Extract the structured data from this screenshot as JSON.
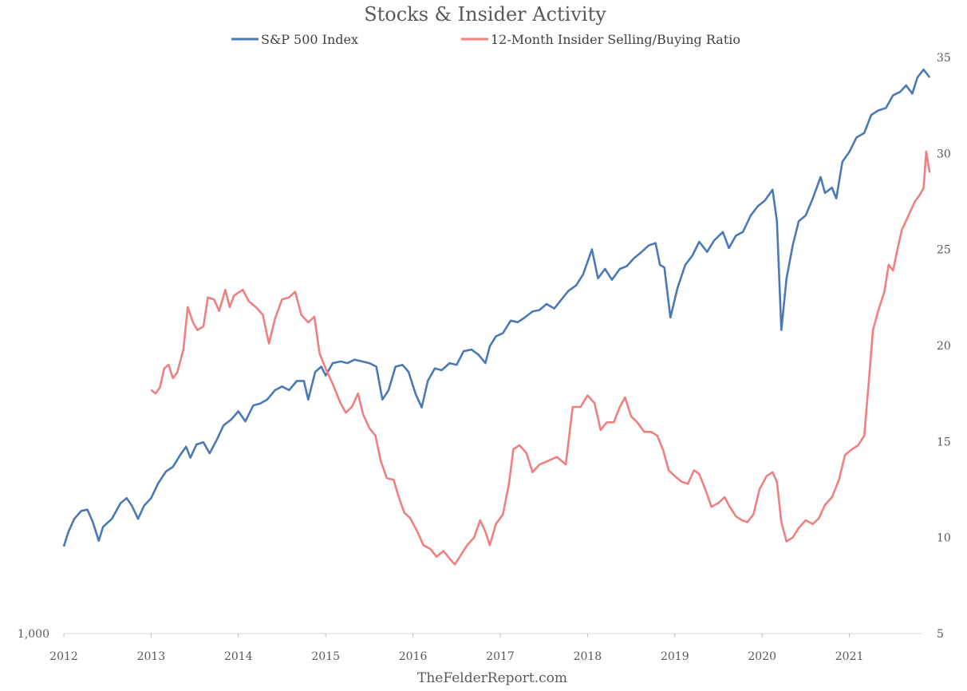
{
  "chart_data": {
    "type": "line",
    "title": "Stocks & Insider Activity",
    "source": "TheFelderReport.com",
    "x_ticks": [
      "2012",
      "2013",
      "2014",
      "2015",
      "2016",
      "2017",
      "2018",
      "2019",
      "2020",
      "2021"
    ],
    "x_range": [
      2012,
      2021.9
    ],
    "left_axis": {
      "scale": "log",
      "ticks": [
        "1,000"
      ],
      "range": [
        1000,
        5000
      ]
    },
    "right_axis": {
      "scale": "linear",
      "ticks": [
        "5",
        "10",
        "15",
        "20",
        "25",
        "30",
        "35"
      ],
      "range": [
        5,
        35
      ]
    },
    "series": [
      {
        "name": "S&P 500 Index",
        "axis": "left",
        "color": "#4a7ab5",
        "points": [
          [
            2012.0,
            1270
          ],
          [
            2012.05,
            1320
          ],
          [
            2012.12,
            1370
          ],
          [
            2012.2,
            1400
          ],
          [
            2012.27,
            1405
          ],
          [
            2012.33,
            1360
          ],
          [
            2012.4,
            1290
          ],
          [
            2012.45,
            1340
          ],
          [
            2012.55,
            1370
          ],
          [
            2012.65,
            1430
          ],
          [
            2012.72,
            1450
          ],
          [
            2012.78,
            1420
          ],
          [
            2012.85,
            1370
          ],
          [
            2012.92,
            1420
          ],
          [
            2013.0,
            1450
          ],
          [
            2013.08,
            1510
          ],
          [
            2013.17,
            1560
          ],
          [
            2013.25,
            1580
          ],
          [
            2013.33,
            1630
          ],
          [
            2013.4,
            1670
          ],
          [
            2013.45,
            1620
          ],
          [
            2013.52,
            1680
          ],
          [
            2013.6,
            1690
          ],
          [
            2013.67,
            1640
          ],
          [
            2013.75,
            1700
          ],
          [
            2013.83,
            1770
          ],
          [
            2013.92,
            1800
          ],
          [
            2014.0,
            1840
          ],
          [
            2014.08,
            1790
          ],
          [
            2014.17,
            1870
          ],
          [
            2014.25,
            1880
          ],
          [
            2014.33,
            1900
          ],
          [
            2014.42,
            1950
          ],
          [
            2014.5,
            1970
          ],
          [
            2014.58,
            1950
          ],
          [
            2014.67,
            2000
          ],
          [
            2014.75,
            2000
          ],
          [
            2014.8,
            1900
          ],
          [
            2014.88,
            2050
          ],
          [
            2014.95,
            2080
          ],
          [
            2015.0,
            2030
          ],
          [
            2015.08,
            2100
          ],
          [
            2015.17,
            2110
          ],
          [
            2015.25,
            2100
          ],
          [
            2015.33,
            2120
          ],
          [
            2015.42,
            2110
          ],
          [
            2015.5,
            2100
          ],
          [
            2015.58,
            2080
          ],
          [
            2015.65,
            1900
          ],
          [
            2015.72,
            1950
          ],
          [
            2015.8,
            2080
          ],
          [
            2015.88,
            2090
          ],
          [
            2015.95,
            2050
          ],
          [
            2016.03,
            1930
          ],
          [
            2016.1,
            1860
          ],
          [
            2016.17,
            2000
          ],
          [
            2016.25,
            2070
          ],
          [
            2016.33,
            2060
          ],
          [
            2016.42,
            2100
          ],
          [
            2016.5,
            2090
          ],
          [
            2016.58,
            2170
          ],
          [
            2016.67,
            2180
          ],
          [
            2016.75,
            2150
          ],
          [
            2016.83,
            2100
          ],
          [
            2016.88,
            2200
          ],
          [
            2016.95,
            2260
          ],
          [
            2017.03,
            2280
          ],
          [
            2017.12,
            2360
          ],
          [
            2017.2,
            2350
          ],
          [
            2017.28,
            2380
          ],
          [
            2017.37,
            2420
          ],
          [
            2017.45,
            2430
          ],
          [
            2017.53,
            2470
          ],
          [
            2017.62,
            2440
          ],
          [
            2017.7,
            2500
          ],
          [
            2017.78,
            2560
          ],
          [
            2017.87,
            2600
          ],
          [
            2017.95,
            2680
          ],
          [
            2018.05,
            2870
          ],
          [
            2018.12,
            2650
          ],
          [
            2018.2,
            2720
          ],
          [
            2018.28,
            2640
          ],
          [
            2018.37,
            2720
          ],
          [
            2018.45,
            2740
          ],
          [
            2018.53,
            2800
          ],
          [
            2018.62,
            2850
          ],
          [
            2018.7,
            2900
          ],
          [
            2018.78,
            2920
          ],
          [
            2018.83,
            2750
          ],
          [
            2018.88,
            2730
          ],
          [
            2018.95,
            2380
          ],
          [
            2019.03,
            2580
          ],
          [
            2019.12,
            2750
          ],
          [
            2019.2,
            2820
          ],
          [
            2019.28,
            2930
          ],
          [
            2019.37,
            2850
          ],
          [
            2019.45,
            2940
          ],
          [
            2019.55,
            3010
          ],
          [
            2019.62,
            2880
          ],
          [
            2019.7,
            2980
          ],
          [
            2019.78,
            3010
          ],
          [
            2019.87,
            3150
          ],
          [
            2019.95,
            3230
          ],
          [
            2020.03,
            3280
          ],
          [
            2020.12,
            3380
          ],
          [
            2020.17,
            3100
          ],
          [
            2020.22,
            2300
          ],
          [
            2020.28,
            2650
          ],
          [
            2020.35,
            2900
          ],
          [
            2020.42,
            3100
          ],
          [
            2020.5,
            3150
          ],
          [
            2020.58,
            3300
          ],
          [
            2020.67,
            3500
          ],
          [
            2020.72,
            3350
          ],
          [
            2020.8,
            3400
          ],
          [
            2020.85,
            3300
          ],
          [
            2020.92,
            3650
          ],
          [
            2021.0,
            3750
          ],
          [
            2021.08,
            3900
          ],
          [
            2021.17,
            3950
          ],
          [
            2021.25,
            4150
          ],
          [
            2021.33,
            4200
          ],
          [
            2021.42,
            4230
          ],
          [
            2021.5,
            4380
          ],
          [
            2021.58,
            4420
          ],
          [
            2021.65,
            4500
          ],
          [
            2021.72,
            4400
          ],
          [
            2021.78,
            4600
          ],
          [
            2021.85,
            4700
          ],
          [
            2021.92,
            4600
          ]
        ]
      },
      {
        "name": "12-Month Insider Selling/Buying Ratio",
        "axis": "right",
        "color": "#f08080",
        "points": [
          [
            2013.0,
            17.7
          ],
          [
            2013.05,
            17.5
          ],
          [
            2013.1,
            17.8
          ],
          [
            2013.15,
            18.8
          ],
          [
            2013.2,
            19.0
          ],
          [
            2013.25,
            18.3
          ],
          [
            2013.3,
            18.6
          ],
          [
            2013.37,
            19.8
          ],
          [
            2013.42,
            22.0
          ],
          [
            2013.48,
            21.2
          ],
          [
            2013.53,
            20.8
          ],
          [
            2013.6,
            21.0
          ],
          [
            2013.65,
            22.5
          ],
          [
            2013.72,
            22.4
          ],
          [
            2013.78,
            21.8
          ],
          [
            2013.85,
            22.9
          ],
          [
            2013.9,
            22.0
          ],
          [
            2013.95,
            22.6
          ],
          [
            2014.05,
            22.9
          ],
          [
            2014.12,
            22.3
          ],
          [
            2014.2,
            22.0
          ],
          [
            2014.28,
            21.6
          ],
          [
            2014.35,
            20.1
          ],
          [
            2014.42,
            21.4
          ],
          [
            2014.5,
            22.4
          ],
          [
            2014.58,
            22.5
          ],
          [
            2014.65,
            22.8
          ],
          [
            2014.72,
            21.6
          ],
          [
            2014.8,
            21.2
          ],
          [
            2014.87,
            21.5
          ],
          [
            2014.93,
            19.6
          ],
          [
            2015.0,
            18.8
          ],
          [
            2015.08,
            18.0
          ],
          [
            2015.17,
            17.0
          ],
          [
            2015.23,
            16.5
          ],
          [
            2015.3,
            16.8
          ],
          [
            2015.37,
            17.5
          ],
          [
            2015.43,
            16.4
          ],
          [
            2015.5,
            15.7
          ],
          [
            2015.57,
            15.3
          ],
          [
            2015.63,
            14.0
          ],
          [
            2015.7,
            13.1
          ],
          [
            2015.78,
            13.0
          ],
          [
            2015.83,
            12.2
          ],
          [
            2015.9,
            11.3
          ],
          [
            2015.97,
            11.0
          ],
          [
            2016.05,
            10.3
          ],
          [
            2016.12,
            9.6
          ],
          [
            2016.2,
            9.4
          ],
          [
            2016.27,
            9.0
          ],
          [
            2016.35,
            9.3
          ],
          [
            2016.42,
            8.9
          ],
          [
            2016.48,
            8.6
          ],
          [
            2016.55,
            9.1
          ],
          [
            2016.62,
            9.6
          ],
          [
            2016.7,
            10.0
          ],
          [
            2016.77,
            10.9
          ],
          [
            2016.83,
            10.3
          ],
          [
            2016.88,
            9.6
          ],
          [
            2016.95,
            10.7
          ],
          [
            2017.03,
            11.2
          ],
          [
            2017.1,
            12.8
          ],
          [
            2017.15,
            14.6
          ],
          [
            2017.22,
            14.8
          ],
          [
            2017.3,
            14.4
          ],
          [
            2017.37,
            13.4
          ],
          [
            2017.45,
            13.8
          ],
          [
            2017.55,
            14.0
          ],
          [
            2017.65,
            14.2
          ],
          [
            2017.75,
            13.8
          ],
          [
            2017.83,
            16.8
          ],
          [
            2017.92,
            16.8
          ],
          [
            2018.0,
            17.4
          ],
          [
            2018.08,
            17.0
          ],
          [
            2018.15,
            15.6
          ],
          [
            2018.22,
            16.0
          ],
          [
            2018.3,
            16.0
          ],
          [
            2018.37,
            16.8
          ],
          [
            2018.43,
            17.3
          ],
          [
            2018.5,
            16.3
          ],
          [
            2018.57,
            16.0
          ],
          [
            2018.65,
            15.5
          ],
          [
            2018.73,
            15.5
          ],
          [
            2018.8,
            15.3
          ],
          [
            2018.87,
            14.5
          ],
          [
            2018.93,
            13.5
          ],
          [
            2019.0,
            13.2
          ],
          [
            2019.08,
            12.9
          ],
          [
            2019.15,
            12.8
          ],
          [
            2019.22,
            13.5
          ],
          [
            2019.28,
            13.3
          ],
          [
            2019.35,
            12.5
          ],
          [
            2019.42,
            11.6
          ],
          [
            2019.5,
            11.8
          ],
          [
            2019.57,
            12.1
          ],
          [
            2019.63,
            11.6
          ],
          [
            2019.7,
            11.1
          ],
          [
            2019.77,
            10.9
          ],
          [
            2019.83,
            10.8
          ],
          [
            2019.9,
            11.2
          ],
          [
            2019.97,
            12.5
          ],
          [
            2020.05,
            13.2
          ],
          [
            2020.12,
            13.4
          ],
          [
            2020.17,
            12.9
          ],
          [
            2020.22,
            10.8
          ],
          [
            2020.28,
            9.8
          ],
          [
            2020.35,
            10.0
          ],
          [
            2020.42,
            10.5
          ],
          [
            2020.5,
            10.9
          ],
          [
            2020.58,
            10.7
          ],
          [
            2020.65,
            11.0
          ],
          [
            2020.72,
            11.7
          ],
          [
            2020.8,
            12.1
          ],
          [
            2020.88,
            13.0
          ],
          [
            2020.95,
            14.3
          ],
          [
            2021.03,
            14.6
          ],
          [
            2021.1,
            14.8
          ],
          [
            2021.17,
            15.3
          ],
          [
            2021.22,
            18.0
          ],
          [
            2021.27,
            20.8
          ],
          [
            2021.33,
            21.8
          ],
          [
            2021.4,
            22.8
          ],
          [
            2021.45,
            24.2
          ],
          [
            2021.5,
            23.9
          ],
          [
            2021.55,
            25.0
          ],
          [
            2021.6,
            26.0
          ],
          [
            2021.65,
            26.5
          ],
          [
            2021.7,
            27.0
          ],
          [
            2021.75,
            27.5
          ],
          [
            2021.8,
            27.8
          ],
          [
            2021.85,
            28.2
          ],
          [
            2021.88,
            30.1
          ],
          [
            2021.92,
            29.0
          ]
        ]
      }
    ]
  }
}
